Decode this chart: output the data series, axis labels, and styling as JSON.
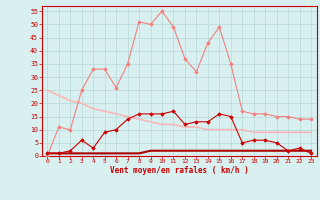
{
  "x": [
    0,
    1,
    2,
    3,
    4,
    5,
    6,
    7,
    8,
    9,
    10,
    11,
    12,
    13,
    14,
    15,
    16,
    17,
    18,
    19,
    20,
    21,
    22,
    23
  ],
  "rafales": [
    0,
    11,
    10,
    25,
    33,
    33,
    26,
    35,
    51,
    50,
    55,
    49,
    37,
    32,
    43,
    49,
    35,
    17,
    16,
    16,
    15,
    15,
    14,
    14
  ],
  "moyen": [
    1,
    1,
    2,
    6,
    3,
    9,
    10,
    14,
    16,
    16,
    16,
    17,
    12,
    13,
    13,
    16,
    15,
    5,
    6,
    6,
    5,
    2,
    3,
    1
  ],
  "trend_rafales": [
    25,
    23,
    21,
    20,
    18,
    17,
    16,
    15,
    14,
    13,
    12,
    12,
    11,
    11,
    10,
    10,
    10,
    10,
    9,
    9,
    9,
    9,
    9,
    9
  ],
  "trend_moyen": [
    1,
    1,
    1,
    1,
    1,
    1,
    1,
    1,
    1,
    2,
    2,
    2,
    2,
    2,
    2,
    2,
    2,
    2,
    2,
    2,
    2,
    2,
    2,
    2
  ],
  "color_rafales": "#f48080",
  "color_moyen": "#cc0000",
  "color_trend_rafales": "#f8b8b8",
  "color_trend_moyen": "#aa0000",
  "bg_color": "#d8f0f0",
  "grid_color": "#b8d8d8",
  "xlabel": "Vent moyen/en rafales ( km/h )",
  "ylim": [
    0,
    57
  ],
  "yticks": [
    0,
    5,
    10,
    15,
    20,
    25,
    30,
    35,
    40,
    45,
    50,
    55
  ],
  "tick_color": "#cc0000",
  "spine_color": "#cc0000"
}
